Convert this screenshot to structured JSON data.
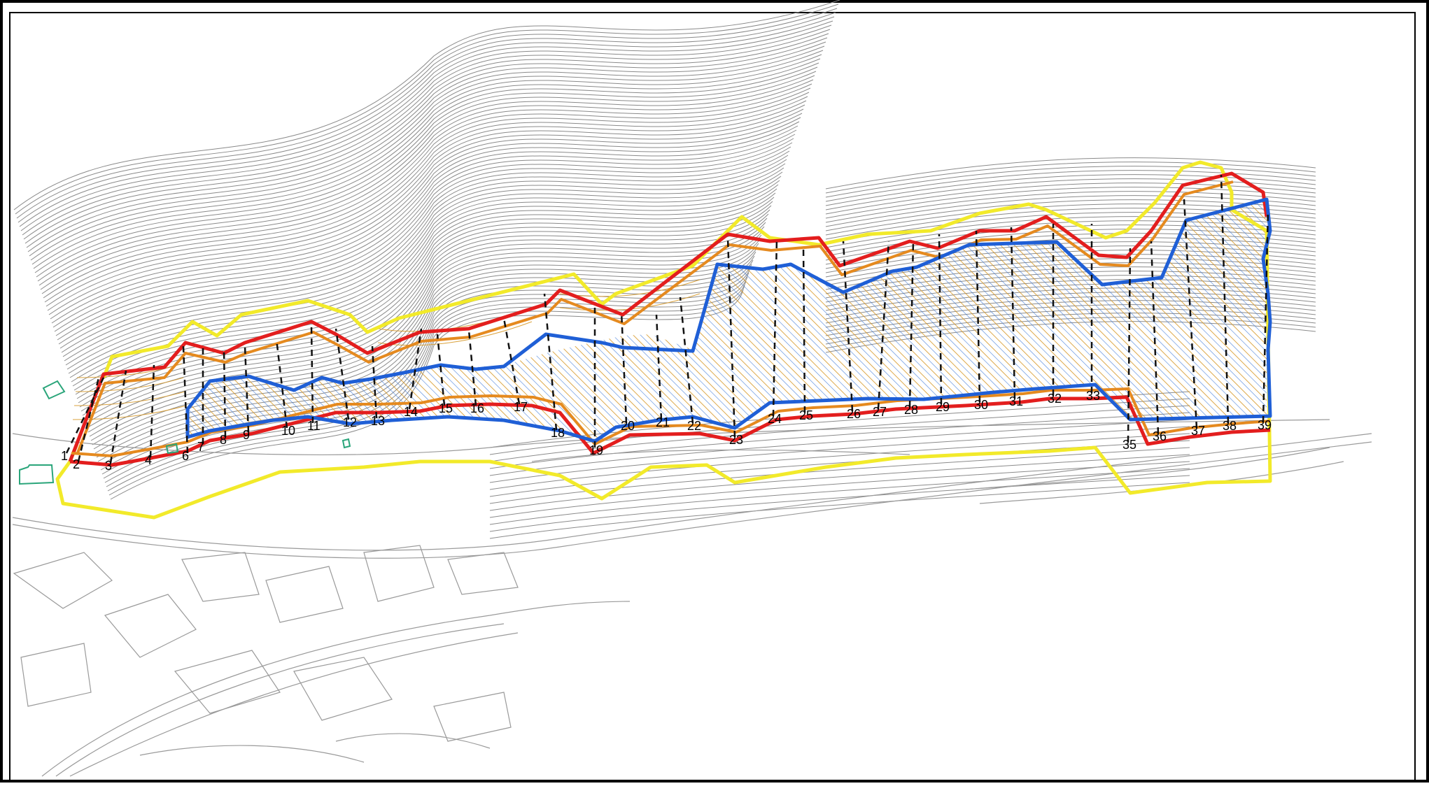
{
  "map": {
    "section_labels": [
      "1",
      "2",
      "3",
      "4",
      "6",
      "7",
      "8",
      "9",
      "10",
      "11",
      "12",
      "13",
      "14",
      "15",
      "16",
      "17",
      "18",
      "19",
      "20",
      "21",
      "22",
      "23",
      "24",
      "25",
      "26",
      "27",
      "28",
      "29",
      "30",
      "31",
      "32",
      "33",
      "35",
      "36",
      "37",
      "38",
      "39"
    ]
  },
  "colors": {
    "outer_boundary": "#f2ea2a",
    "crest_line": "#e31e1e",
    "offset_line": "#e58a1f",
    "inner_line": "#1f5fd6",
    "hatch_blue": "#3a78d8",
    "hatch_orange": "#d79a2b",
    "contour": "#8a8a8a",
    "section_line": "#111111",
    "building_outline": "#2aa57a"
  }
}
